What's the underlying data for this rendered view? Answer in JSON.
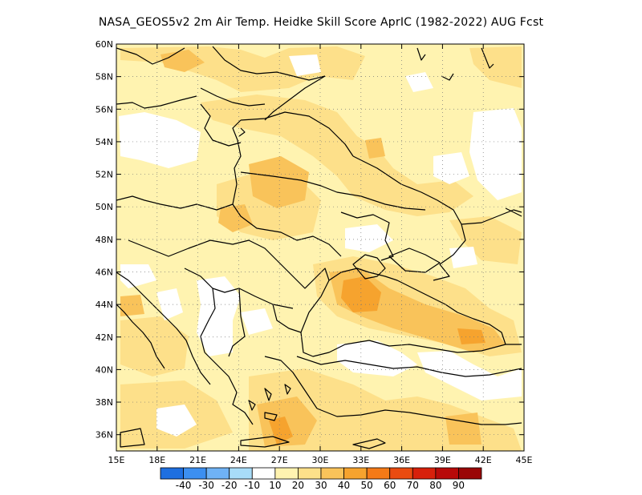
{
  "title": "NASA_GEOS5v2  2m Air Temp. Heidke Skill Score AprIC (1982-2022) AUG Fcst",
  "map": {
    "lon_range": [
      15,
      45
    ],
    "lat_range": [
      35,
      60
    ],
    "lon_ticks": [
      "15E",
      "18E",
      "21E",
      "24E",
      "27E",
      "30E",
      "33E",
      "36E",
      "39E",
      "42E",
      "45E"
    ],
    "lat_ticks": [
      "36N",
      "38N",
      "40N",
      "42N",
      "44N",
      "46N",
      "48N",
      "50N",
      "52N",
      "54N",
      "56N",
      "58N",
      "60N"
    ],
    "grid": "dotted"
  },
  "colorbar": {
    "labels": [
      "-40",
      "-30",
      "-20",
      "-10",
      "10",
      "20",
      "30",
      "40",
      "50",
      "60",
      "70",
      "80",
      "90"
    ],
    "colors": [
      "#1e6fe0",
      "#3c8ff0",
      "#6fb2f5",
      "#a8dcf8",
      "#ffffff",
      "#fff3b0",
      "#fde08a",
      "#f9c35a",
      "#f6a32e",
      "#f47a17",
      "#ea4b10",
      "#d7200b",
      "#b80a09",
      "#9a0606"
    ]
  }
}
